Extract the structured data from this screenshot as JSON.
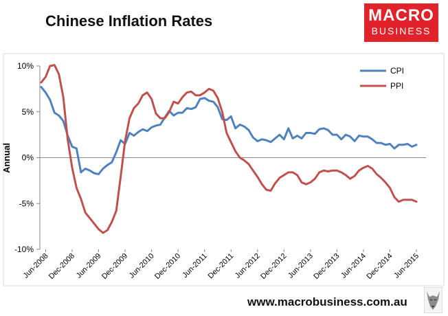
{
  "header": {
    "title": "Chinese Inflation Rates",
    "logo_top": "MACRO",
    "logo_bottom": "BUSINESS"
  },
  "footer": {
    "website": "www.macrobusiness.com.au"
  },
  "colors": {
    "cpi": "#4f81bd",
    "ppi": "#c0504d",
    "logo_bg": "#e0222a"
  },
  "chart_data": {
    "type": "line",
    "title": "Chinese Inflation Rates",
    "ylabel": "Annual",
    "xlabel": "",
    "ylim": [
      -10,
      10
    ],
    "yticks": [
      -10,
      -5,
      0,
      5,
      10
    ],
    "ytick_labels": [
      "-10%",
      "-5%",
      "0%",
      "5%",
      "10%"
    ],
    "xtick_labels": [
      "Jun-2008",
      "Dec-2008",
      "Jun-2009",
      "Dec-2009",
      "Jun-2010",
      "Dec-2010",
      "Jun-2011",
      "Dec-2011",
      "Jun-2012",
      "Dec-2012",
      "Jun-2013",
      "Dec-2013",
      "Jun-2014",
      "Dec-2014",
      "Jun-2015"
    ],
    "x_start": "2008-05",
    "x_end": "2015-06",
    "grid": false,
    "legend_position": "top-right",
    "series": [
      {
        "name": "CPI",
        "values": [
          7.7,
          7.1,
          6.3,
          4.9,
          4.6,
          4.0,
          2.4,
          1.2,
          1.0,
          -1.6,
          -1.2,
          -1.4,
          -1.7,
          -1.8,
          -1.2,
          -0.8,
          -0.5,
          0.6,
          1.9,
          1.5,
          2.7,
          2.4,
          2.8,
          3.1,
          2.9,
          3.3,
          3.5,
          3.6,
          4.4,
          5.1,
          4.6,
          4.9,
          4.9,
          5.4,
          5.3,
          5.5,
          6.4,
          6.5,
          6.2,
          6.1,
          5.5,
          4.2,
          4.1,
          4.5,
          3.2,
          3.6,
          3.4,
          3.0,
          2.2,
          1.8,
          2.0,
          1.9,
          1.7,
          2.1,
          2.5,
          2.0,
          3.2,
          2.1,
          2.4,
          2.1,
          2.7,
          2.7,
          2.6,
          3.1,
          3.2,
          3.0,
          2.5,
          2.5,
          2.0,
          2.5,
          2.3,
          1.8,
          2.4,
          2.3,
          2.3,
          2.0,
          1.6,
          1.6,
          1.4,
          1.5,
          1.0,
          1.4,
          1.4,
          1.5,
          1.2,
          1.4
        ]
      },
      {
        "name": "PPI",
        "values": [
          8.2,
          8.8,
          10.0,
          10.1,
          9.1,
          6.6,
          2.0,
          -1.1,
          -3.3,
          -4.5,
          -6.0,
          -6.6,
          -7.2,
          -7.8,
          -8.2,
          -7.9,
          -7.0,
          -5.8,
          -2.1,
          1.8,
          4.3,
          5.4,
          5.9,
          6.8,
          7.1,
          6.4,
          4.8,
          4.3,
          4.3,
          5.0,
          6.1,
          5.9,
          6.6,
          7.1,
          7.2,
          6.8,
          6.8,
          7.1,
          7.5,
          7.3,
          6.5,
          5.0,
          2.7,
          1.7,
          0.7,
          0.0,
          -0.3,
          -0.7,
          -1.4,
          -2.1,
          -2.9,
          -3.5,
          -3.6,
          -2.8,
          -2.2,
          -1.9,
          -1.6,
          -1.6,
          -1.9,
          -2.7,
          -2.9,
          -2.7,
          -2.3,
          -1.6,
          -1.4,
          -1.5,
          -1.4,
          -1.4,
          -1.6,
          -1.9,
          -2.3,
          -2.0,
          -1.4,
          -1.1,
          -0.9,
          -1.2,
          -1.8,
          -2.2,
          -2.7,
          -3.3,
          -4.3,
          -4.8,
          -4.6,
          -4.6,
          -4.6,
          -4.8
        ]
      }
    ]
  }
}
